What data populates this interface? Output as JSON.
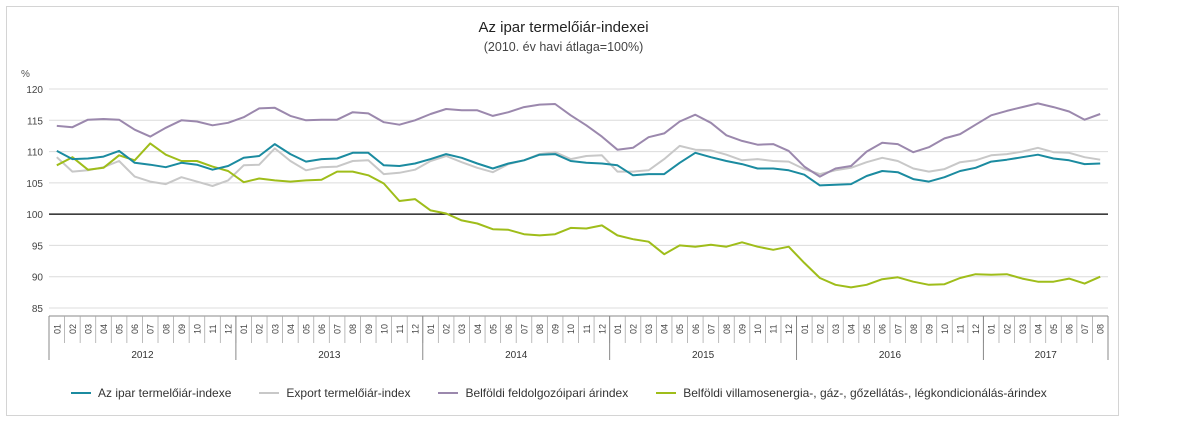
{
  "title": "Az ipar termelőiár-indexei",
  "subtitle": "(2010. év havi átlaga=100%)",
  "chart_data": {
    "type": "line",
    "ylabel": "%",
    "ylim": [
      85,
      120
    ],
    "yticks": [
      85,
      90,
      95,
      100,
      105,
      110,
      115,
      120
    ],
    "reference_line": 100,
    "grid": "horizontal",
    "legend_position": "bottom",
    "years": [
      "2012",
      "2013",
      "2014",
      "2015",
      "2016",
      "2017"
    ],
    "months": [
      "01",
      "02",
      "03",
      "04",
      "05",
      "06",
      "07",
      "08",
      "09",
      "10",
      "11",
      "12",
      "01",
      "02",
      "03",
      "04",
      "05",
      "06",
      "07",
      "08",
      "09",
      "10",
      "11",
      "12",
      "01",
      "02",
      "03",
      "04",
      "05",
      "06",
      "07",
      "08",
      "09",
      "10",
      "11",
      "12",
      "01",
      "02",
      "03",
      "04",
      "05",
      "06",
      "07",
      "08",
      "09",
      "10",
      "11",
      "12",
      "01",
      "02",
      "03",
      "04",
      "05",
      "06",
      "07",
      "08",
      "09",
      "10",
      "11",
      "12",
      "01",
      "02",
      "03",
      "04",
      "05",
      "06",
      "07",
      "08"
    ],
    "series": [
      {
        "name": "Az ipar termelőiár-indexe",
        "color": "#1b8ba0",
        "values": [
          110.1,
          108.8,
          108.9,
          109.2,
          110.1,
          108.2,
          107.9,
          107.5,
          108.2,
          107.9,
          107.1,
          107.7,
          109.0,
          109.3,
          111.2,
          109.6,
          108.4,
          108.8,
          108.9,
          109.8,
          109.8,
          107.8,
          107.7,
          108.1,
          108.8,
          109.6,
          109.0,
          108.1,
          107.3,
          108.1,
          108.6,
          109.5,
          109.6,
          108.5,
          108.2,
          108.1,
          107.8,
          106.2,
          106.4,
          106.4,
          108.2,
          109.8,
          109.1,
          108.5,
          108.0,
          107.3,
          107.3,
          107.0,
          106.3,
          104.6,
          104.7,
          104.8,
          106.1,
          106.9,
          106.7,
          105.6,
          105.2,
          105.9,
          106.9,
          107.4,
          108.4,
          108.7,
          109.1,
          109.5,
          108.9,
          108.6,
          108.0,
          108.1
        ]
      },
      {
        "name": "Export termelőiár-index",
        "color": "#c8c8c8",
        "values": [
          109.1,
          106.8,
          107.0,
          107.5,
          108.5,
          106.0,
          105.2,
          104.8,
          105.9,
          105.2,
          104.5,
          105.4,
          107.8,
          107.9,
          110.5,
          108.5,
          107.0,
          107.5,
          107.6,
          108.5,
          108.6,
          106.4,
          106.6,
          107.1,
          108.5,
          109.3,
          108.3,
          107.4,
          106.7,
          108.0,
          108.6,
          109.6,
          109.9,
          108.8,
          109.3,
          109.4,
          106.8,
          106.8,
          107.0,
          108.8,
          110.9,
          110.3,
          110.2,
          109.5,
          108.6,
          108.8,
          108.5,
          108.4,
          107.2,
          106.4,
          107.0,
          107.4,
          108.3,
          109.0,
          108.5,
          107.3,
          106.8,
          107.2,
          108.3,
          108.6,
          109.4,
          109.6,
          110.0,
          110.6,
          109.9,
          109.8,
          109.1,
          108.7
        ]
      },
      {
        "name": "Belföldi feldolgozóipari árindex",
        "color": "#9b88ad",
        "values": [
          114.1,
          113.9,
          115.1,
          115.2,
          115.1,
          113.5,
          112.4,
          113.8,
          115.0,
          114.8,
          114.2,
          114.6,
          115.5,
          116.9,
          117.0,
          115.7,
          115.0,
          115.1,
          115.1,
          116.3,
          116.1,
          114.7,
          114.3,
          115.0,
          116.0,
          116.8,
          116.6,
          116.6,
          115.7,
          116.3,
          117.1,
          117.5,
          117.6,
          115.8,
          114.2,
          112.4,
          110.3,
          110.6,
          112.3,
          112.9,
          114.8,
          115.9,
          114.6,
          112.6,
          111.7,
          111.1,
          111.2,
          110.1,
          107.6,
          106.0,
          107.3,
          107.7,
          110.0,
          111.4,
          111.2,
          109.9,
          110.7,
          112.1,
          112.8,
          114.3,
          115.8,
          116.5,
          117.1,
          117.7,
          117.1,
          116.4,
          115.1,
          116.0
        ]
      },
      {
        "name": "Belföldi villamosenergia-, gáz-, gőzellátás-, légkondicionálás-árindex",
        "color": "#9fbd1a",
        "values": [
          107.8,
          109.1,
          107.1,
          107.4,
          109.4,
          108.6,
          111.3,
          109.5,
          108.5,
          108.5,
          107.6,
          106.9,
          105.1,
          105.7,
          105.4,
          105.2,
          105.4,
          105.5,
          106.8,
          106.8,
          106.2,
          104.9,
          102.1,
          102.4,
          100.6,
          100.1,
          99.0,
          98.5,
          97.6,
          97.5,
          96.8,
          96.6,
          96.8,
          97.8,
          97.7,
          98.2,
          96.6,
          96.0,
          95.6,
          93.6,
          95.0,
          94.8,
          95.1,
          94.8,
          95.5,
          94.8,
          94.3,
          94.8,
          92.2,
          89.8,
          88.7,
          88.3,
          88.7,
          89.6,
          89.9,
          89.2,
          88.7,
          88.8,
          89.8,
          90.4,
          90.3,
          90.4,
          89.7,
          89.2,
          89.2,
          89.7,
          88.9,
          90.0
        ]
      }
    ]
  }
}
